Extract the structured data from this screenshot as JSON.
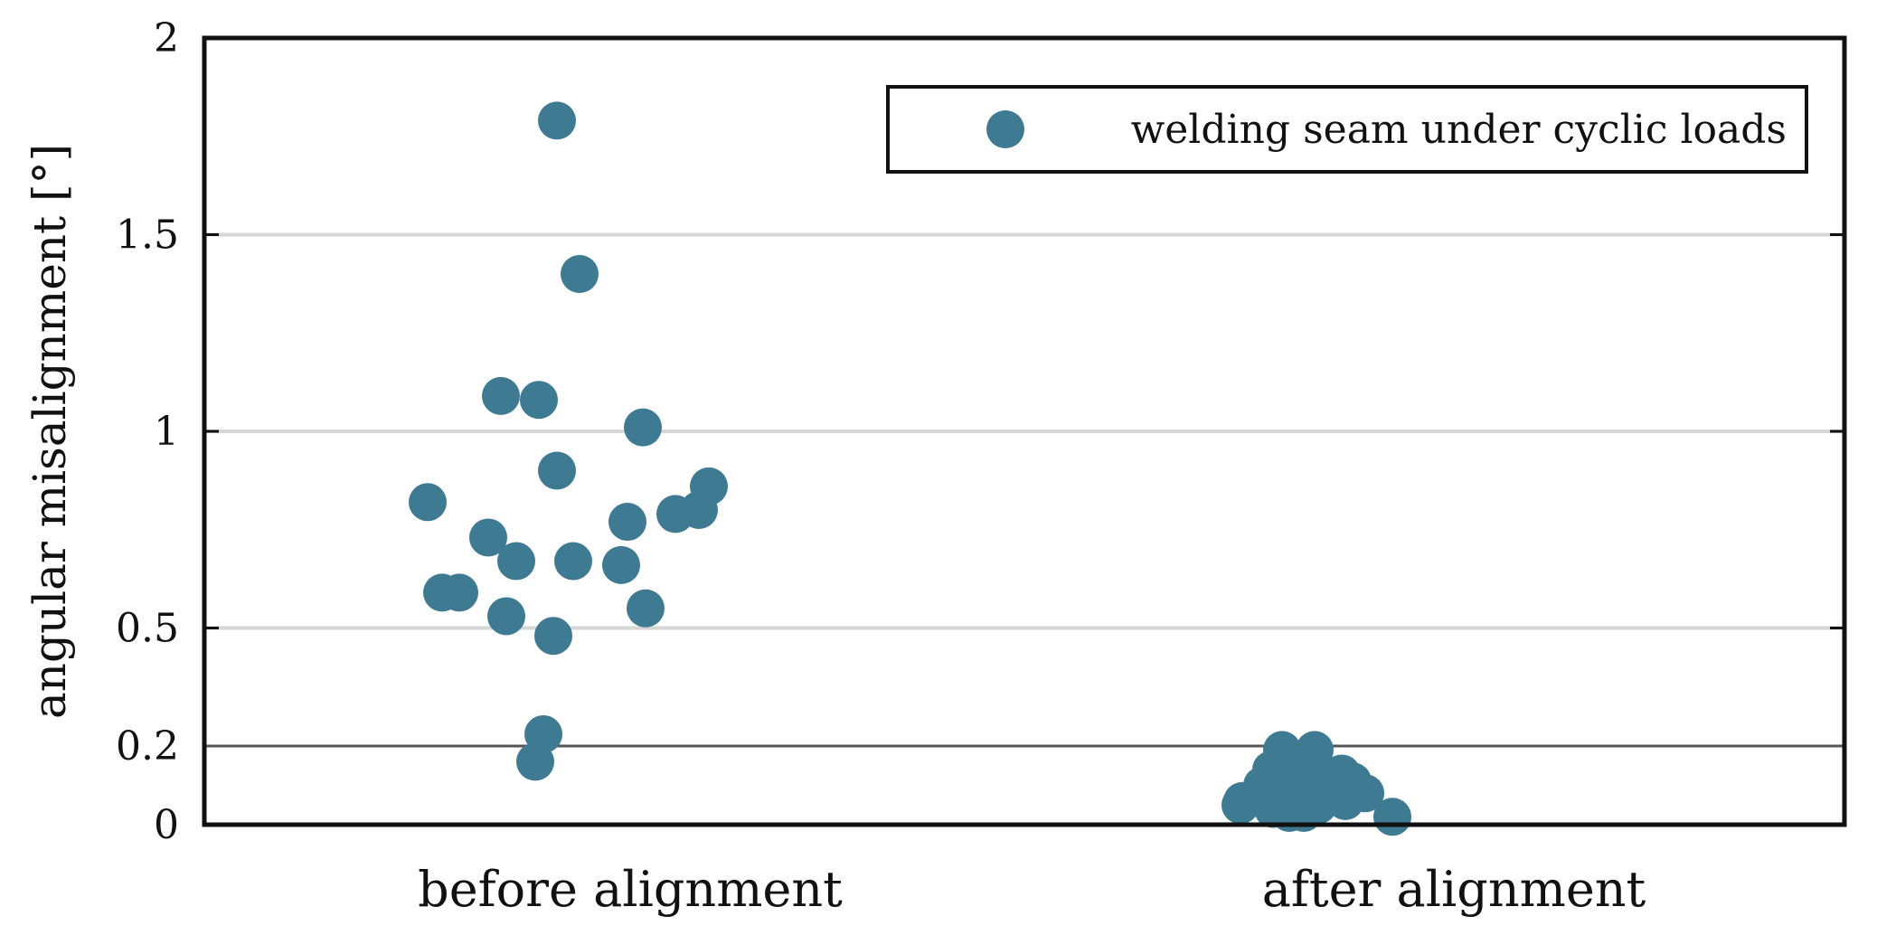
{
  "chart_data": {
    "type": "scatter",
    "ylabel": "angular misalignment [°]",
    "yticks": [
      "0",
      "0.2",
      "0.5",
      "1",
      "1.5",
      "2"
    ],
    "ylim": [
      0,
      2
    ],
    "grid": "horizontal",
    "reference_line": 0.2,
    "categories": [
      "before alignment",
      "after alignment"
    ],
    "legend": {
      "label": "welding seam under cyclic loads",
      "placement": "top-right"
    },
    "marker_color": "#3f7a93",
    "series": [
      {
        "name": "welding seam under cyclic loads",
        "points": [
          {
            "category": "before alignment",
            "y": 1.79
          },
          {
            "category": "before alignment",
            "y": 1.4
          },
          {
            "category": "before alignment",
            "y": 1.09
          },
          {
            "category": "before alignment",
            "y": 1.08
          },
          {
            "category": "before alignment",
            "y": 1.01
          },
          {
            "category": "before alignment",
            "y": 0.9
          },
          {
            "category": "before alignment",
            "y": 0.86
          },
          {
            "category": "before alignment",
            "y": 0.82
          },
          {
            "category": "before alignment",
            "y": 0.8
          },
          {
            "category": "before alignment",
            "y": 0.79
          },
          {
            "category": "before alignment",
            "y": 0.77
          },
          {
            "category": "before alignment",
            "y": 0.73
          },
          {
            "category": "before alignment",
            "y": 0.67
          },
          {
            "category": "before alignment",
            "y": 0.67
          },
          {
            "category": "before alignment",
            "y": 0.66
          },
          {
            "category": "before alignment",
            "y": 0.59
          },
          {
            "category": "before alignment",
            "y": 0.59
          },
          {
            "category": "before alignment",
            "y": 0.55
          },
          {
            "category": "before alignment",
            "y": 0.53
          },
          {
            "category": "before alignment",
            "y": 0.48
          },
          {
            "category": "before alignment",
            "y": 0.23
          },
          {
            "category": "before alignment",
            "y": 0.16
          },
          {
            "category": "after alignment",
            "y": 0.19
          },
          {
            "category": "after alignment",
            "y": 0.19
          },
          {
            "category": "after alignment",
            "y": 0.14
          },
          {
            "category": "after alignment",
            "y": 0.14
          },
          {
            "category": "after alignment",
            "y": 0.13
          },
          {
            "category": "after alignment",
            "y": 0.12
          },
          {
            "category": "after alignment",
            "y": 0.11
          },
          {
            "category": "after alignment",
            "y": 0.1
          },
          {
            "category": "after alignment",
            "y": 0.09
          },
          {
            "category": "after alignment",
            "y": 0.08
          },
          {
            "category": "after alignment",
            "y": 0.07
          },
          {
            "category": "after alignment",
            "y": 0.06
          },
          {
            "category": "after alignment",
            "y": 0.06
          },
          {
            "category": "after alignment",
            "y": 0.05
          },
          {
            "category": "after alignment",
            "y": 0.05
          },
          {
            "category": "after alignment",
            "y": 0.04
          },
          {
            "category": "after alignment",
            "y": 0.04
          },
          {
            "category": "after alignment",
            "y": 0.03
          },
          {
            "category": "after alignment",
            "y": 0.03
          },
          {
            "category": "after alignment",
            "y": 0.02
          }
        ]
      }
    ]
  }
}
